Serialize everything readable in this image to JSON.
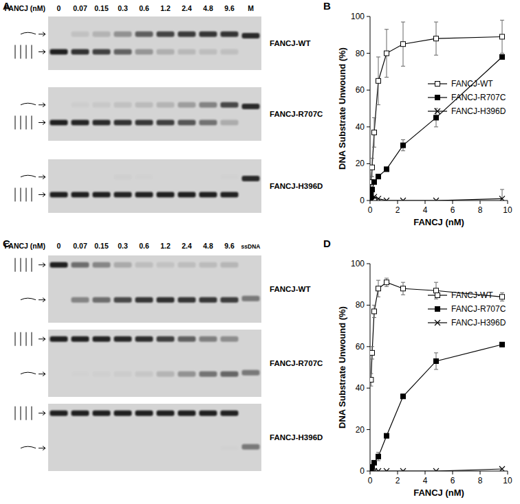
{
  "panel_labels": [
    "A",
    "B",
    "C",
    "D"
  ],
  "gels": [
    {
      "lane_header": "FANCJ (nM)",
      "lanes": [
        "0",
        "0.07",
        "0.15",
        "0.3",
        "0.6",
        "1.2",
        "2.4",
        "4.8",
        "9.6",
        "M"
      ],
      "rows": [
        "FANCJ-WT",
        "FANCJ-R707C",
        "FANCJ-H396D"
      ]
    },
    {
      "lane_header": "FANCJ (nM)",
      "lanes": [
        "0",
        "0.07",
        "0.15",
        "0.3",
        "0.6",
        "1.2",
        "2.4",
        "4.8",
        "9.6",
        "ssDNA"
      ],
      "rows": [
        "FANCJ-WT",
        "FANCJ-R707C",
        "FANCJ-H396D"
      ]
    }
  ],
  "chart_data": [
    {
      "type": "line",
      "x_label": "FANCJ (nM)",
      "y_label": "DNA Substrate Unwound (%)",
      "x": [
        0,
        0.07,
        0.15,
        0.3,
        0.6,
        1.2,
        2.4,
        4.8,
        9.6
      ],
      "xlim": [
        0,
        10
      ],
      "ylim": [
        0,
        100
      ],
      "xticks": [
        0,
        2,
        4,
        6,
        8,
        10
      ],
      "yticks": [
        0,
        20,
        40,
        60,
        80,
        100
      ],
      "legend": "right",
      "grid": false,
      "series": [
        {
          "name": "FANCJ-WT",
          "color": "#000000",
          "marker": "square-open",
          "values": [
            0,
            10,
            18,
            37,
            65,
            80,
            85,
            88,
            89
          ],
          "errors": [
            0,
            3,
            5,
            8,
            13,
            13,
            12,
            9,
            9
          ]
        },
        {
          "name": "FANCJ-R707C",
          "color": "#000000",
          "marker": "square",
          "values": [
            0,
            3,
            6,
            10,
            13,
            17,
            30,
            45,
            78
          ],
          "errors": [
            0,
            1,
            1,
            1,
            1,
            1,
            3,
            5,
            1
          ]
        },
        {
          "name": "FANCJ-H396D",
          "color": "#000000",
          "marker": "x",
          "values": [
            0,
            0,
            0,
            2,
            1,
            0,
            0,
            0,
            1
          ],
          "errors": [
            0,
            0,
            0,
            0,
            0,
            0,
            0,
            0,
            5
          ]
        }
      ]
    },
    {
      "type": "line",
      "x_label": "FANCJ (nM)",
      "y_label": "DNA Substrate Unwound (%)",
      "x": [
        0,
        0.07,
        0.15,
        0.3,
        0.6,
        1.2,
        2.4,
        4.8,
        9.6
      ],
      "xlim": [
        0,
        10
      ],
      "ylim": [
        0,
        100
      ],
      "xticks": [
        0,
        2,
        4,
        6,
        8,
        10
      ],
      "yticks": [
        0,
        20,
        40,
        60,
        80,
        100
      ],
      "legend": "right",
      "grid": false,
      "series": [
        {
          "name": "FANCJ-WT",
          "color": "#000000",
          "marker": "square-open",
          "values": [
            null,
            44,
            57,
            77,
            88,
            91,
            88,
            87,
            84
          ],
          "errors": [
            null,
            3,
            3,
            3,
            4,
            2,
            3,
            4,
            2
          ]
        },
        {
          "name": "FANCJ-R707C",
          "color": "#000000",
          "marker": "square",
          "values": [
            0,
            1,
            2,
            4,
            7,
            17,
            36,
            53,
            61
          ],
          "errors": [
            0,
            1,
            1,
            1,
            2,
            1,
            1,
            4,
            1
          ]
        },
        {
          "name": "FANCJ-H396D",
          "color": "#000000",
          "marker": "x",
          "values": [
            0,
            0,
            0,
            0,
            0,
            0,
            0,
            0,
            1
          ],
          "errors": [
            0,
            0,
            0,
            0,
            0,
            0,
            0,
            0,
            0
          ]
        }
      ]
    }
  ]
}
